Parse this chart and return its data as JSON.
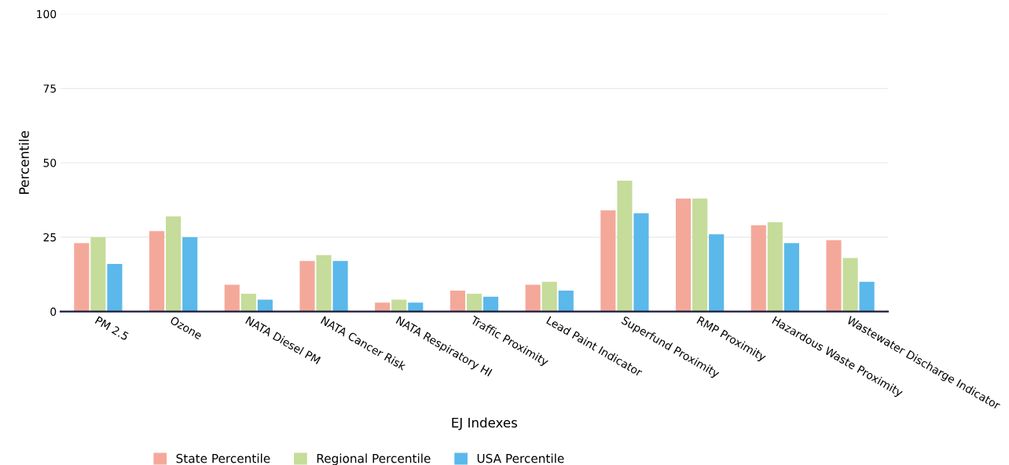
{
  "chart_data": {
    "type": "bar",
    "xlabel": "EJ Indexes",
    "ylabel": "Percentile",
    "categories": [
      "PM 2.5",
      "Ozone",
      "NATA Diesel PM",
      "NATA Cancer Risk",
      "NATA Respiratory HI",
      "Traffic Proximity",
      "Lead Paint Indicator",
      "Superfund Proximity",
      "RMP Proximity",
      "Hazardous Waste Proximity",
      "Wastewater Discharge Indicator"
    ],
    "series": [
      {
        "name": "State Percentile",
        "color": "#f4a89a",
        "values": [
          23,
          27,
          9,
          17,
          3,
          7,
          9,
          34,
          38,
          29,
          24
        ]
      },
      {
        "name": "Regional Percentile",
        "color": "#c5dc9a",
        "values": [
          25,
          32,
          6,
          19,
          4,
          6,
          10,
          44,
          38,
          30,
          18
        ]
      },
      {
        "name": "USA Percentile",
        "color": "#5bb8ea",
        "values": [
          16,
          25,
          4,
          17,
          3,
          5,
          7,
          33,
          26,
          23,
          10
        ]
      }
    ],
    "ylim": [
      0,
      100
    ],
    "yticks": [
      0,
      25,
      50,
      75,
      100
    ],
    "grid": "y",
    "legend": "bottom"
  }
}
